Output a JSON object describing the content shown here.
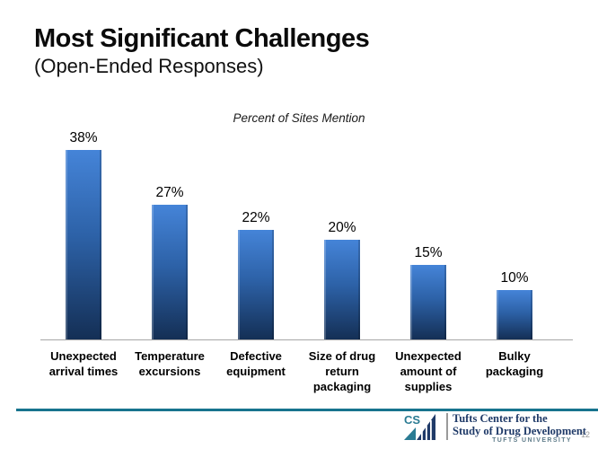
{
  "slide": {
    "title": "Most Significant Challenges",
    "subtitle": "(Open-Ended Responses)",
    "page_number": "12"
  },
  "chart_data": {
    "type": "bar",
    "title": "Percent of Sites Mention",
    "categories": [
      "Unexpected arrival times",
      "Temperature excursions",
      "Defective equipment",
      "Size of drug return packaging",
      "Unexpected amount of supplies",
      "Bulky packaging"
    ],
    "values": [
      38,
      27,
      22,
      20,
      15,
      10
    ],
    "value_labels": [
      "38%",
      "27%",
      "22%",
      "20%",
      "15%",
      "10%"
    ],
    "ylim": [
      0,
      40
    ],
    "grid": false,
    "legend": "none",
    "bar_color_top": "#4584d8",
    "bar_color_mid": "#2d62a8",
    "bar_color_bottom": "#142f55",
    "axis_color": "#a6a6a6"
  },
  "footer": {
    "logo_text": "CS",
    "org_line1": "Tufts Center for the",
    "org_line2": "Study of Drug Development",
    "org_sub": "TUFTS UNIVERSITY",
    "rule_color": "#17748e",
    "logo_teal": "#2a7b93",
    "logo_navy": "#1f3a68",
    "org_text_color": "#1f3a68"
  }
}
